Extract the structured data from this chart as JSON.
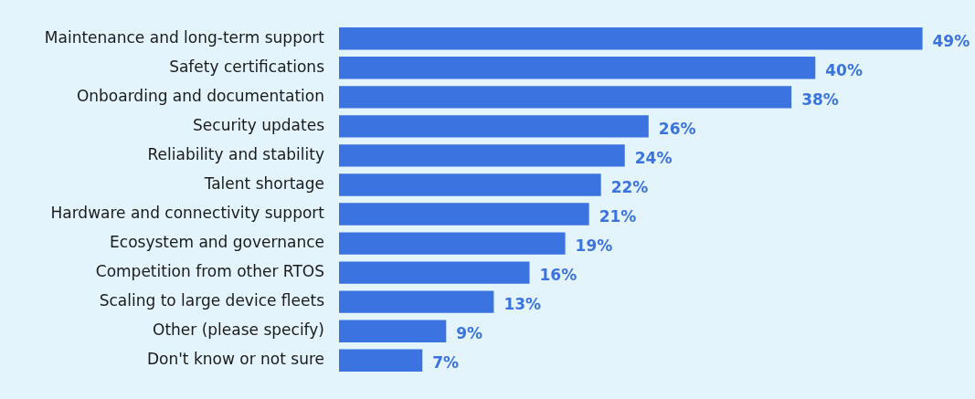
{
  "chart_data": {
    "type": "bar",
    "orientation": "horizontal",
    "categories": [
      "Maintenance and long-term support",
      "Safety certifications",
      "Onboarding and documentation",
      "Security updates",
      "Reliability and stability",
      "Talent shortage",
      "Hardware and connectivity support",
      "Ecosystem and governance",
      "Competition from other RTOS",
      "Scaling to large device fleets",
      "Other (please specify)",
      "Don't know or not sure"
    ],
    "values": [
      49,
      40,
      38,
      26,
      24,
      22,
      21,
      19,
      16,
      13,
      9,
      7
    ],
    "value_labels": [
      "49%",
      "40%",
      "38%",
      "26%",
      "24%",
      "22%",
      "21%",
      "19%",
      "16%",
      "13%",
      "9%",
      "7%"
    ],
    "color": "#3b73e0"
  }
}
